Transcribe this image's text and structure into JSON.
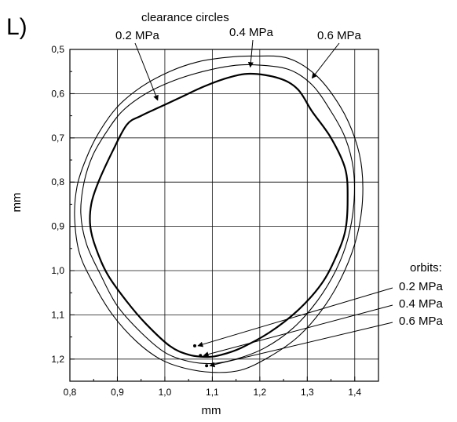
{
  "chart_data": {
    "type": "line",
    "panel_label": "L)",
    "xlabel": "mm",
    "ylabel": "mm",
    "xlim": [
      0.8,
      1.45
    ],
    "ylim": [
      1.25,
      0.5
    ],
    "y_inverted": true,
    "grid": true,
    "xticks": [
      "0,8",
      "0,9",
      "1,0",
      "1,1",
      "1,2",
      "1,3",
      "1,4"
    ],
    "yticks": [
      "0,5",
      "0,6",
      "0,7",
      "0,8",
      "0,9",
      "1,0",
      "1,1",
      "1,2"
    ],
    "annotations": {
      "clearance_title": "clearance circles",
      "orbits_title": "orbits:",
      "clearance_labels": [
        "0.2 MPa",
        "0.4 MPa",
        "0.6 MPa"
      ],
      "orbit_labels": [
        "0.2 MPa",
        "0.4 MPa",
        "0.6 MPa"
      ]
    },
    "series": [
      {
        "name": "0.2 MPa",
        "kind": "clearance circle",
        "closed": true,
        "x": [
          1.18,
          1.24,
          1.28,
          1.31,
          1.35,
          1.38,
          1.385,
          1.38,
          1.36,
          1.33,
          1.28,
          1.22,
          1.16,
          1.12,
          1.09,
          1.05,
          1.01,
          0.96,
          0.92,
          0.88,
          0.855,
          0.843,
          0.845,
          0.86,
          0.89,
          0.92,
          0.95,
          0.99,
          1.03,
          1.08,
          1.13
        ],
        "y": [
          0.555,
          0.565,
          0.59,
          0.64,
          0.7,
          0.77,
          0.84,
          0.91,
          0.97,
          1.03,
          1.09,
          1.14,
          1.175,
          1.19,
          1.195,
          1.19,
          1.17,
          1.12,
          1.07,
          1.01,
          0.95,
          0.9,
          0.85,
          0.8,
          0.73,
          0.67,
          0.65,
          0.63,
          0.61,
          0.585,
          0.565
        ]
      },
      {
        "name": "0.4 MPa",
        "kind": "clearance circle",
        "closed": true,
        "x": [
          1.19,
          1.26,
          1.31,
          1.35,
          1.38,
          1.397,
          1.398,
          1.385,
          1.36,
          1.32,
          1.27,
          1.21,
          1.15,
          1.1,
          1.05,
          1.0,
          0.95,
          0.9,
          0.865,
          0.835,
          0.823,
          0.83,
          0.848,
          0.875,
          0.91,
          0.96,
          1.02,
          1.08,
          1.14
        ],
        "y": [
          0.535,
          0.545,
          0.58,
          0.64,
          0.7,
          0.77,
          0.85,
          0.93,
          1.0,
          1.07,
          1.13,
          1.175,
          1.2,
          1.21,
          1.205,
          1.185,
          1.14,
          1.08,
          1.01,
          0.94,
          0.87,
          0.8,
          0.74,
          0.69,
          0.64,
          0.6,
          0.57,
          0.55,
          0.537
        ]
      },
      {
        "name": "0.6 MPa",
        "kind": "clearance circle",
        "closed": true,
        "x": [
          1.19,
          1.26,
          1.32,
          1.37,
          1.4,
          1.415,
          1.415,
          1.4,
          1.37,
          1.33,
          1.28,
          1.22,
          1.16,
          1.1,
          1.04,
          0.99,
          0.94,
          0.89,
          0.85,
          0.82,
          0.81,
          0.815,
          0.833,
          0.86,
          0.9,
          0.95,
          1.01,
          1.07,
          1.13
        ],
        "y": [
          0.515,
          0.52,
          0.56,
          0.63,
          0.7,
          0.77,
          0.86,
          0.94,
          1.02,
          1.09,
          1.15,
          1.195,
          1.225,
          1.23,
          1.22,
          1.2,
          1.16,
          1.1,
          1.03,
          0.96,
          0.88,
          0.81,
          0.75,
          0.69,
          0.63,
          0.585,
          0.55,
          0.528,
          0.518
        ]
      }
    ],
    "orbits": [
      {
        "name": "0.2 MPa",
        "x": 1.063,
        "y": 1.17
      },
      {
        "name": "0.4 MPa",
        "x": 1.075,
        "y": 1.192
      },
      {
        "name": "0.6 MPa",
        "x": 1.088,
        "y": 1.215
      }
    ]
  }
}
